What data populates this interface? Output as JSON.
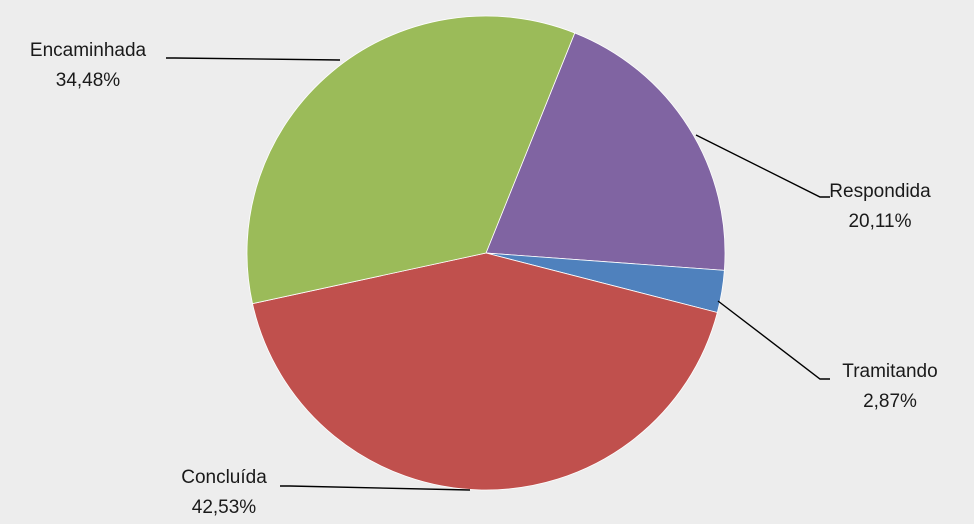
{
  "chart_data": {
    "type": "pie",
    "slices": [
      {
        "label": "Respondida",
        "value": 20.11,
        "display": "20,11%",
        "color": "#8064a2"
      },
      {
        "label": "Tramitando",
        "value": 2.87,
        "display": "2,87%",
        "color": "#4f81bd"
      },
      {
        "label": "Concluída",
        "value": 42.53,
        "display": "42,53%",
        "color": "#c0504d"
      },
      {
        "label": "Encaminhada",
        "value": 34.48,
        "display": "34,48%",
        "color": "#9bbb59"
      }
    ],
    "start_angle_deg": 21.8,
    "direction": "clockwise",
    "label_style": "outside with leader lines",
    "legend": "none"
  }
}
